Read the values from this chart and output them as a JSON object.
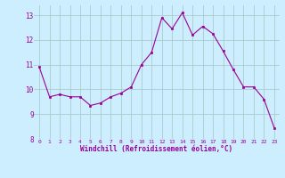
{
  "x": [
    0,
    1,
    2,
    3,
    4,
    5,
    6,
    7,
    8,
    9,
    10,
    11,
    12,
    13,
    14,
    15,
    16,
    17,
    18,
    19,
    20,
    21,
    22,
    23
  ],
  "y": [
    10.9,
    9.7,
    9.8,
    9.7,
    9.7,
    9.35,
    9.45,
    9.7,
    9.85,
    10.1,
    11.0,
    11.5,
    12.9,
    12.45,
    13.1,
    12.2,
    12.55,
    12.25,
    11.55,
    10.8,
    10.1,
    10.1,
    9.6,
    8.45
  ],
  "line_color": "#990099",
  "marker_color": "#990099",
  "bg_color": "#cceeff",
  "grid_color": "#aacccc",
  "xlabel": "Windchill (Refroidissement éolien,°C)",
  "xlabel_color": "#990099",
  "tick_color": "#990099",
  "ylim": [
    8,
    13.4
  ],
  "yticks": [
    8,
    9,
    10,
    11,
    12,
    13
  ],
  "xticks": [
    0,
    1,
    2,
    3,
    4,
    5,
    6,
    7,
    8,
    9,
    10,
    11,
    12,
    13,
    14,
    15,
    16,
    17,
    18,
    19,
    20,
    21,
    22,
    23
  ],
  "fig_bg": "#cceeff"
}
